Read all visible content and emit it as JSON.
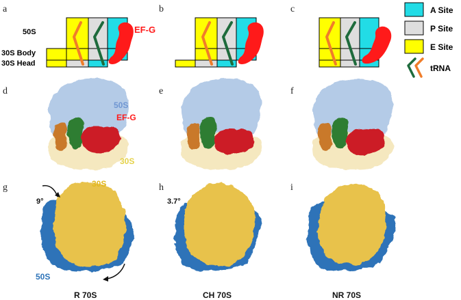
{
  "panel_letters": [
    "a",
    "b",
    "c",
    "d",
    "e",
    "f",
    "g",
    "h",
    "i"
  ],
  "schematic": {
    "row_labels": {
      "large": "50S",
      "body": "30S Body",
      "head": "30S Head"
    },
    "efg_label": "EF-G"
  },
  "legend": {
    "items": [
      {
        "label": "A Site",
        "color": "#22dce6"
      },
      {
        "label": "P Site",
        "color": "#dedede"
      },
      {
        "label": "E Site",
        "color": "#ffff00"
      }
    ],
    "trna_label": "tRNA",
    "trna_colors": [
      "#1e6b3c",
      "#f07d2a"
    ]
  },
  "density": {
    "labels": {
      "large": "50S",
      "factor": "EF-G",
      "small": "30S"
    },
    "colors": {
      "large": "#a8c2e3",
      "small": "#f4e6b9",
      "efg": "#cc1f27",
      "trna_green": "#2f7d32",
      "trna_orange": "#c9792a"
    }
  },
  "rotation": {
    "labels": {
      "small": "30S",
      "large": "50S"
    },
    "angles": [
      "9°",
      "3.7°"
    ],
    "states": [
      "R 70S",
      "CH 70S",
      "NR 70S"
    ],
    "colors": {
      "small": "#e8c24c",
      "large": "#2d73b8"
    }
  }
}
